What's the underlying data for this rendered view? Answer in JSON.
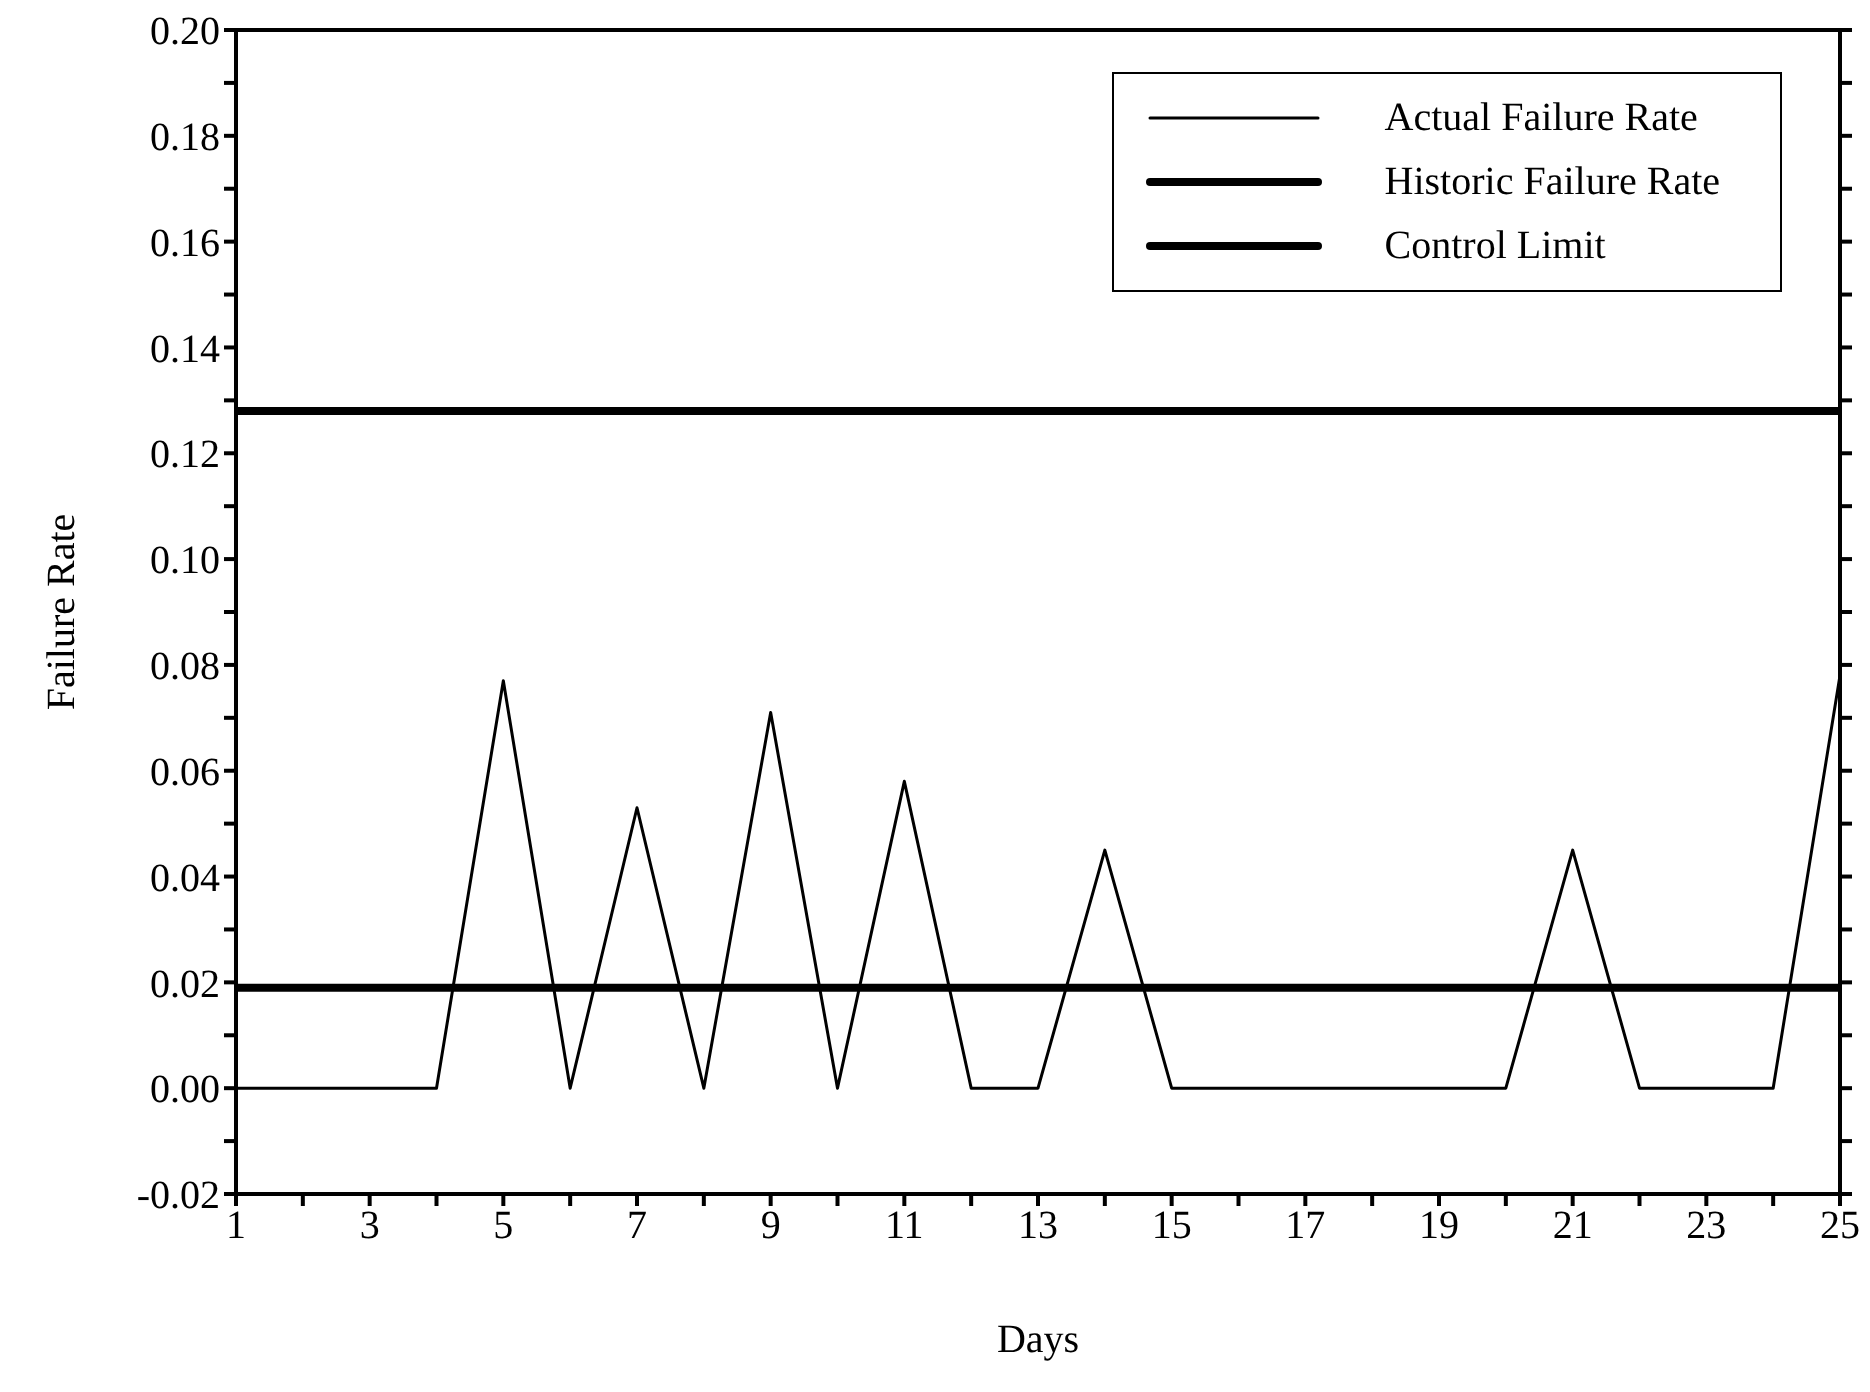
{
  "chart_data": {
    "type": "line",
    "xlabel": "Days",
    "ylabel": "Failure Rate",
    "x": [
      1,
      2,
      3,
      4,
      5,
      6,
      7,
      8,
      9,
      10,
      11,
      12,
      13,
      14,
      15,
      16,
      17,
      18,
      19,
      20,
      21,
      22,
      23,
      24,
      25
    ],
    "series": [
      {
        "name": "Actual Failure Rate",
        "color": "#000000",
        "values": [
          0,
          0,
          0,
          0,
          0.077,
          0,
          0.053,
          0,
          0.071,
          0,
          0.058,
          0,
          0,
          0.045,
          0,
          0,
          0,
          0,
          0,
          0,
          0.045,
          0,
          0,
          0,
          0.078
        ]
      },
      {
        "name": "Historic Failure Rate",
        "color": "#000000",
        "values": [
          0.019,
          0.019,
          0.019,
          0.019,
          0.019,
          0.019,
          0.019,
          0.019,
          0.019,
          0.019,
          0.019,
          0.019,
          0.019,
          0.019,
          0.019,
          0.019,
          0.019,
          0.019,
          0.019,
          0.019,
          0.019,
          0.019,
          0.019,
          0.019,
          0.019
        ]
      },
      {
        "name": "Control Limit",
        "color": "#000000",
        "values": [
          0.128,
          0.128,
          0.128,
          0.128,
          0.128,
          0.128,
          0.128,
          0.128,
          0.128,
          0.128,
          0.128,
          0.128,
          0.128,
          0.128,
          0.128,
          0.128,
          0.128,
          0.128,
          0.128,
          0.128,
          0.128,
          0.128,
          0.128,
          0.128,
          0.128
        ]
      }
    ],
    "xlim": [
      1,
      25
    ],
    "xticks": [
      1,
      {
        "value": 2,
        "label": null
      },
      3,
      {
        "value": 4,
        "label": null
      },
      5,
      {
        "value": 6,
        "label": null
      },
      7,
      {
        "value": 8,
        "label": null
      },
      9,
      {
        "value": 10,
        "label": null
      },
      11,
      {
        "value": 12,
        "label": null
      },
      13,
      {
        "value": 14,
        "label": null
      },
      15,
      {
        "value": 16,
        "label": null
      },
      17,
      {
        "value": 18,
        "label": null
      },
      19,
      {
        "value": 20,
        "label": null
      },
      21,
      {
        "value": 22,
        "label": null
      },
      23,
      {
        "value": 24,
        "label": null
      },
      25
    ],
    "ylim": [
      -0.02,
      0.2
    ],
    "yticks": [
      {
        "value": -0.02,
        "label": "-0.02"
      },
      {
        "value": -0.01,
        "label": null
      },
      {
        "value": 0,
        "label": "0.00"
      },
      {
        "value": 0.01,
        "label": null
      },
      {
        "value": 0.02,
        "label": "0.02"
      },
      {
        "value": 0.03,
        "label": null
      },
      {
        "value": 0.04,
        "label": "0.04"
      },
      {
        "value": 0.05,
        "label": null
      },
      {
        "value": 0.06,
        "label": "0.06"
      },
      {
        "value": 0.07,
        "label": null
      },
      {
        "value": 0.08,
        "label": "0.08"
      },
      {
        "value": 0.09,
        "label": null
      },
      {
        "value": 0.1,
        "label": "0.10"
      },
      {
        "value": 0.11,
        "label": null
      },
      {
        "value": 0.12,
        "label": "0.12"
      },
      {
        "value": 0.13,
        "label": null
      },
      {
        "value": 0.14,
        "label": "0.14"
      },
      {
        "value": 0.15,
        "label": null
      },
      {
        "value": 0.16,
        "label": "0.16"
      },
      {
        "value": 0.17,
        "label": null
      },
      {
        "value": 0.18,
        "label": "0.18"
      },
      {
        "value": 0.19,
        "label": null
      },
      {
        "value": 0.2,
        "label": "0.20"
      }
    ],
    "grid": false,
    "legend": "top right",
    "marker": "none",
    "line_style": "solid"
  }
}
